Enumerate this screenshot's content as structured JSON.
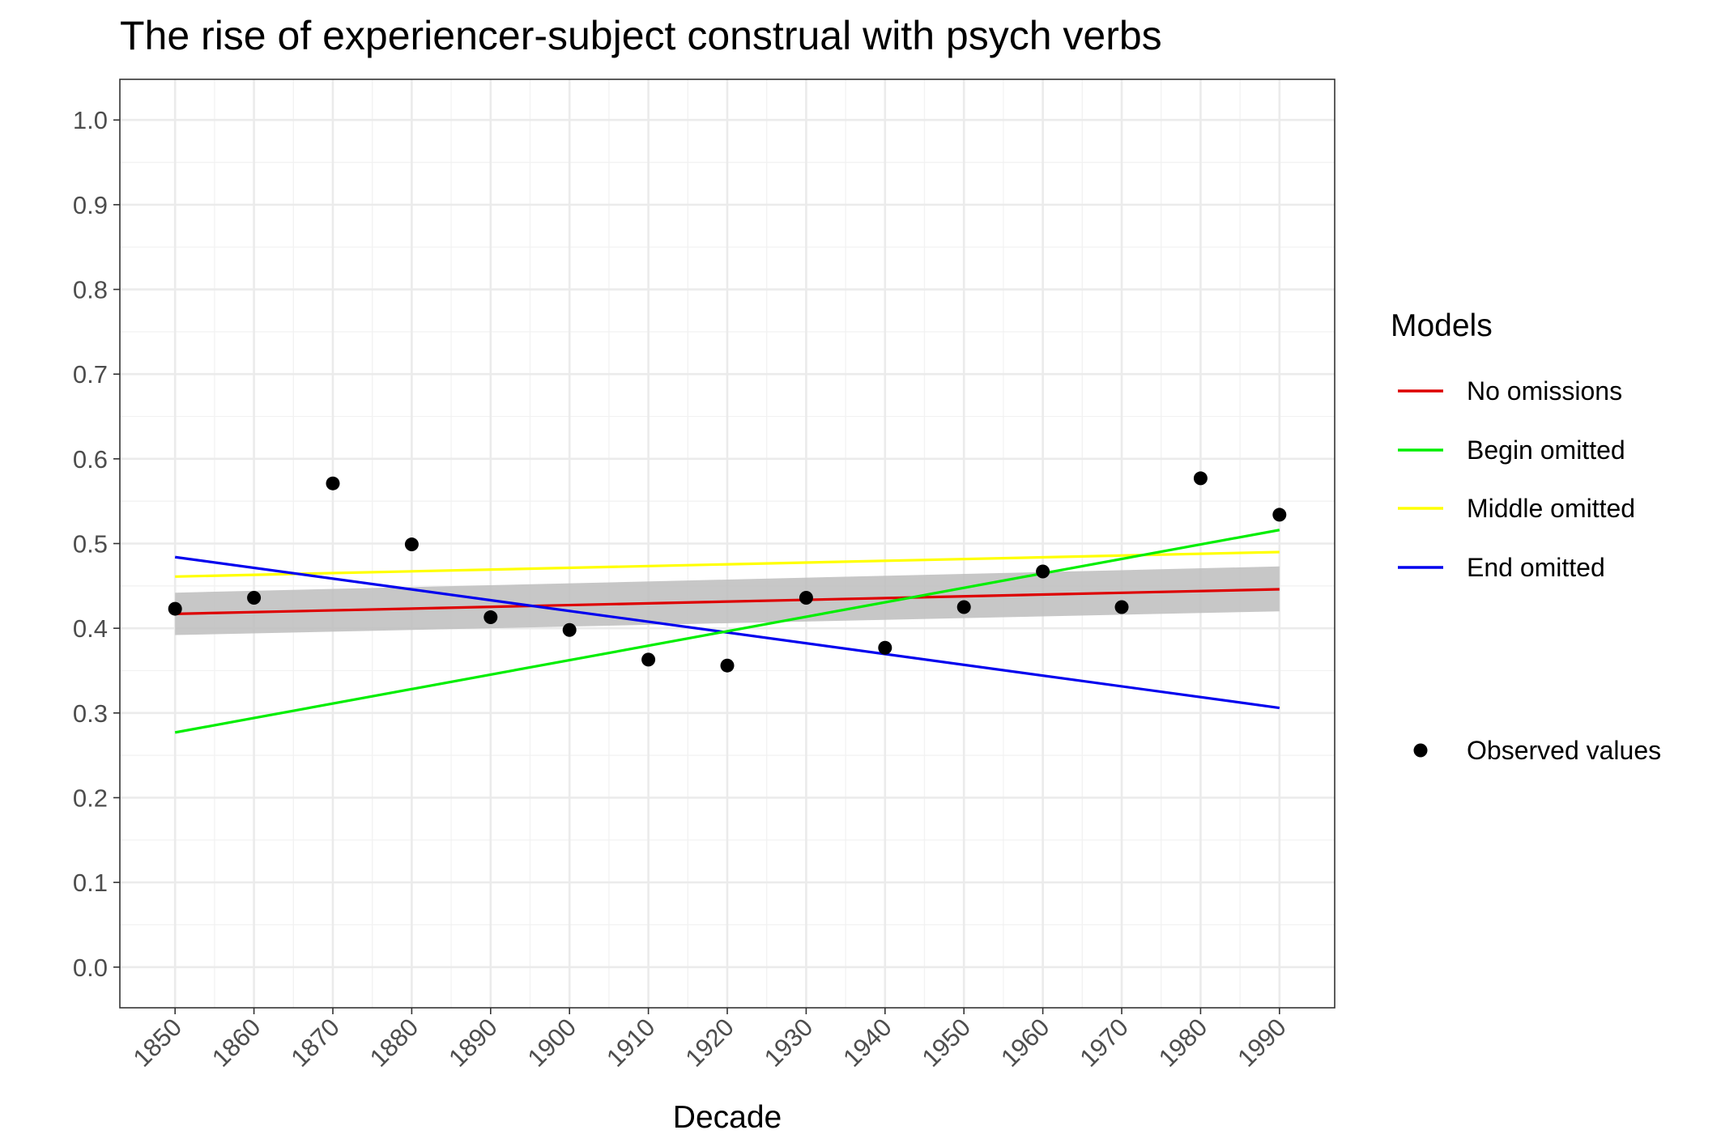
{
  "chart_data": {
    "type": "line",
    "title": "The rise of experiencer-subject construal with psych verbs",
    "xlabel": "Decade",
    "ylabel": "",
    "x": [
      1850,
      1860,
      1870,
      1880,
      1890,
      1900,
      1910,
      1920,
      1930,
      1940,
      1950,
      1960,
      1970,
      1980,
      1990
    ],
    "x_ticks": [
      "1850",
      "1860",
      "1870",
      "1880",
      "1890",
      "1900",
      "1910",
      "1920",
      "1930",
      "1940",
      "1950",
      "1960",
      "1970",
      "1980",
      "1990"
    ],
    "y_ticks": [
      "0.0",
      "0.1",
      "0.2",
      "0.3",
      "0.4",
      "0.5",
      "0.6",
      "0.7",
      "0.8",
      "0.9",
      "1.0"
    ],
    "xlim": [
      1843,
      1997
    ],
    "ylim": [
      -0.048,
      1.048
    ],
    "grid": true,
    "legend_title": "Models",
    "legend_position": "right",
    "observed": {
      "name": "Observed values",
      "color": "#000000",
      "y": [
        0.423,
        0.436,
        0.571,
        0.499,
        0.413,
        0.398,
        0.363,
        0.356,
        0.436,
        0.377,
        0.425,
        0.467,
        0.425,
        0.577,
        0.534
      ]
    },
    "series": [
      {
        "name": "No omissions",
        "color": "#dd0000",
        "x": [
          1850,
          1990
        ],
        "y": [
          0.417,
          0.446
        ]
      },
      {
        "name": "Begin omitted",
        "color": "#00ee00",
        "x": [
          1850,
          1990
        ],
        "y": [
          0.277,
          0.516
        ]
      },
      {
        "name": "Middle omitted",
        "color": "#ffff00",
        "x": [
          1850,
          1990
        ],
        "y": [
          0.461,
          0.49
        ]
      },
      {
        "name": "End omitted",
        "color": "#0000ee",
        "x": [
          1850,
          1990
        ],
        "y": [
          0.484,
          0.306
        ]
      }
    ],
    "confidence_band": {
      "series": "No omissions",
      "color": "#bdbdbd",
      "x": [
        1850,
        1990
      ],
      "lower": [
        0.392,
        0.42
      ],
      "upper": [
        0.442,
        0.473
      ]
    }
  }
}
